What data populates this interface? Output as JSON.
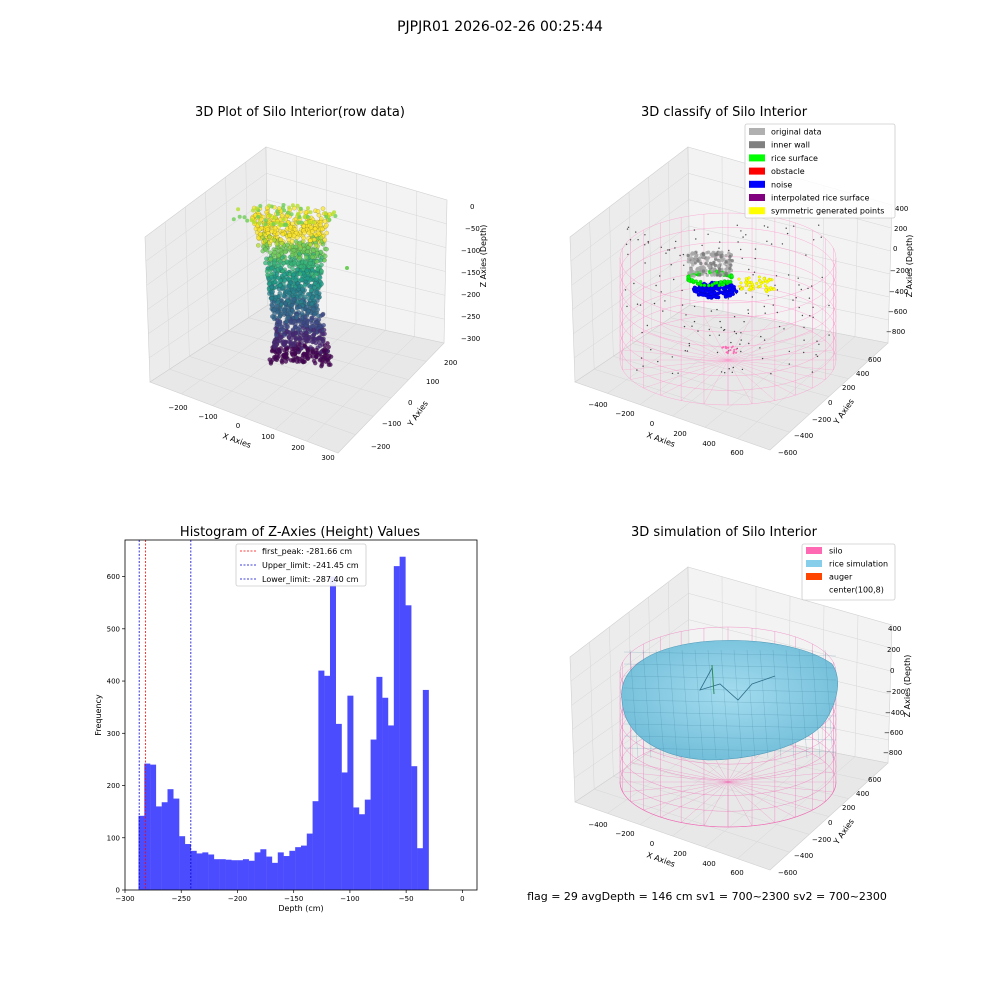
{
  "figure": {
    "title": "PJPJR01 2026-02-26 00:25:44",
    "footer": "flag = 29  avgDepth = 146 cm  sv1 = 700~2300  sv2 = 700~2300"
  },
  "colors": {
    "histogram": "#4c4cff",
    "first_peak": "#ff0000",
    "limits": "#0000cc",
    "silo": "#ff69b4",
    "rice_simulation": "#87ceeb",
    "auger": "#ff4500",
    "original_data": "#b0b0b0",
    "inner_wall": "#808080",
    "rice_surface": "#00ff00",
    "obstacle": "#ff0000",
    "noise": "#0000ff",
    "interpolated_rice_surface": "#800080",
    "symmetric_generated_points": "#ffff00"
  },
  "chart_data": [
    {
      "type": "scatter",
      "title": "3D Plot of Silo Interior(row data)",
      "xlabel": "X Axies",
      "ylabel": "Y Axies",
      "zlabel": "Z Axies (Depth)",
      "xticks": [
        "−200",
        "−100",
        "0",
        "100",
        "200",
        "300"
      ],
      "yticks": [
        "−200",
        "−100",
        "0",
        "100",
        "200"
      ],
      "zticks": [
        "0",
        "−50",
        "−100",
        "−150",
        "−200",
        "−250",
        "−300"
      ]
    },
    {
      "type": "scatter",
      "title": "3D classify of Silo Interior",
      "xlabel": "X Axies",
      "ylabel": "Y Axies",
      "zlabel": "Z Axies (Depth)",
      "xticks": [
        "−400",
        "−200",
        "0",
        "200",
        "400",
        "600"
      ],
      "yticks": [
        "−600",
        "−400",
        "−200",
        "0",
        "200",
        "400",
        "600"
      ],
      "zticks": [
        "400",
        "200",
        "0",
        "−200",
        "−400",
        "−600",
        "−800"
      ],
      "legend": [
        "original data",
        "inner wall",
        "rice surface",
        "obstacle",
        "noise",
        "interpolated rice surface",
        "symmetric generated points"
      ],
      "legend_position": "top-right"
    },
    {
      "type": "bar",
      "title": "Histogram of Z-Axies (Height) Values",
      "xlabel": "Depth (cm)",
      "ylabel": "Frequency",
      "xlim": [
        -300,
        13
      ],
      "ylim": [
        0,
        670
      ],
      "xticks": [
        "−300",
        "−250",
        "−200",
        "−150",
        "−100",
        "−50",
        "0"
      ],
      "yticks": [
        "0",
        "100",
        "200",
        "300",
        "400",
        "500",
        "600"
      ],
      "bin_start": -288,
      "bin_width": 5.16,
      "values": [
        142,
        242,
        240,
        160,
        168,
        193,
        175,
        103,
        88,
        75,
        70,
        72,
        68,
        59,
        59,
        58,
        57,
        57,
        59,
        56,
        72,
        78,
        64,
        52,
        72,
        65,
        75,
        82,
        85,
        108,
        170,
        420,
        410,
        600,
        318,
        225,
        372,
        158,
        145,
        173,
        288,
        408,
        368,
        315,
        620,
        638,
        545,
        237,
        80,
        383
      ],
      "vlines": [
        {
          "label": "first_peak: -281.66 cm",
          "x": -281.66
        },
        {
          "label": "Upper_limit: -241.45 cm",
          "x": -241.45
        },
        {
          "label": "Lower_limit: -287.40 cm",
          "x": -287.4
        }
      ],
      "legend_position": "upper center"
    },
    {
      "type": "scatter",
      "title": "3D simulation of Silo Interior",
      "xlabel": "X Axies",
      "ylabel": "Y Axies",
      "zlabel": "Z Axies (Depth)",
      "xticks": [
        "−400",
        "−200",
        "0",
        "200",
        "400",
        "600"
      ],
      "yticks": [
        "−600",
        "−400",
        "−200",
        "0",
        "200",
        "400",
        "600"
      ],
      "zticks": [
        "400",
        "200",
        "0",
        "−200",
        "−400",
        "−600",
        "−800"
      ],
      "legend": [
        "silo",
        "rice simulation",
        "auger",
        "center(100,8)"
      ],
      "legend_position": "top-right"
    }
  ]
}
